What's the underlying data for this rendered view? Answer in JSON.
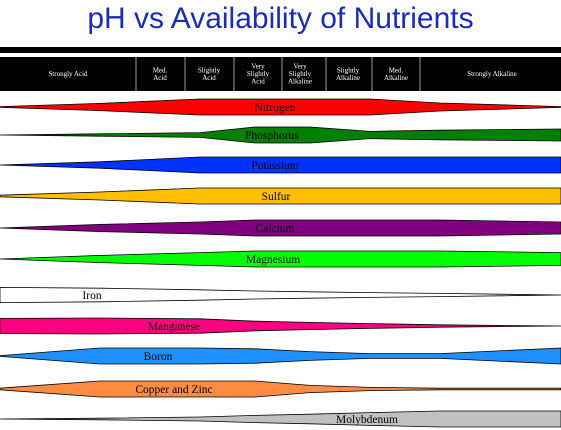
{
  "title": "pH vs Availability of Nutrients",
  "header": {
    "columns": [
      {
        "lines": [
          "Strongly Acid"
        ]
      },
      {
        "lines": [
          "Med.",
          "Acid"
        ]
      },
      {
        "lines": [
          "Slightly",
          "Acid"
        ]
      },
      {
        "lines": [
          "Very",
          "Slightly",
          "Acid"
        ]
      },
      {
        "lines": [
          "Very",
          "Slightly",
          "Alkaline"
        ]
      },
      {
        "lines": [
          "Slightly",
          "Alkaline"
        ]
      },
      {
        "lines": [
          "Med.",
          "Alkaline"
        ]
      },
      {
        "lines": [
          "Strongly Alkaline"
        ]
      }
    ]
  },
  "colors": {
    "title": "#1a2cb8",
    "header_bg": "#000000",
    "band_outline": "#000000"
  },
  "nutrients": [
    {
      "name": "Nitrogen",
      "color": "#ff0000",
      "availability_by_zone": [
        0.05,
        0.45,
        1.0,
        1.0,
        1.0,
        1.0,
        0.5,
        0.05
      ]
    },
    {
      "name": "Phosphorus",
      "color": "#008000",
      "availability_by_zone": [
        0.0,
        0.15,
        0.3,
        1.0,
        1.0,
        0.45,
        0.6,
        0.75
      ]
    },
    {
      "name": "Potassium",
      "color": "#0033ff",
      "availability_by_zone": [
        0.0,
        0.4,
        1.0,
        1.0,
        1.0,
        1.0,
        1.0,
        1.0
      ]
    },
    {
      "name": "Sulfur",
      "color": "#ffc000",
      "availability_by_zone": [
        0.1,
        0.5,
        1.0,
        1.0,
        1.0,
        1.0,
        1.0,
        1.0
      ]
    },
    {
      "name": "Calcium",
      "color": "#800080",
      "availability_by_zone": [
        0.0,
        0.45,
        0.75,
        1.0,
        1.0,
        1.0,
        1.0,
        0.75
      ]
    },
    {
      "name": "Magnesium",
      "color": "#00ff00",
      "availability_by_zone": [
        0.0,
        0.45,
        0.8,
        1.0,
        1.0,
        1.0,
        1.0,
        0.8
      ]
    },
    {
      "name": "Iron",
      "color": "#ffffff",
      "availability_by_zone": [
        0.95,
        0.85,
        0.65,
        0.5,
        0.4,
        0.3,
        0.2,
        0.0
      ]
    },
    {
      "name": "Manganese",
      "color": "#ff0080",
      "availability_by_zone": [
        0.95,
        1.0,
        0.9,
        0.6,
        0.45,
        0.3,
        0.15,
        0.0
      ]
    },
    {
      "name": "Boron",
      "color": "#1e90ff",
      "availability_by_zone": [
        0.05,
        1.0,
        1.0,
        0.9,
        0.55,
        0.3,
        0.3,
        1.0
      ]
    },
    {
      "name": "Copper and Zinc",
      "color": "#ff8c40",
      "availability_by_zone": [
        0.1,
        1.0,
        1.0,
        1.0,
        0.45,
        0.2,
        0.1,
        0.1
      ]
    },
    {
      "name": "Molybdenum",
      "color": "#c0c0c0",
      "availability_by_zone": [
        0.0,
        0.1,
        0.25,
        0.45,
        0.6,
        0.8,
        1.0,
        1.0
      ]
    }
  ]
}
